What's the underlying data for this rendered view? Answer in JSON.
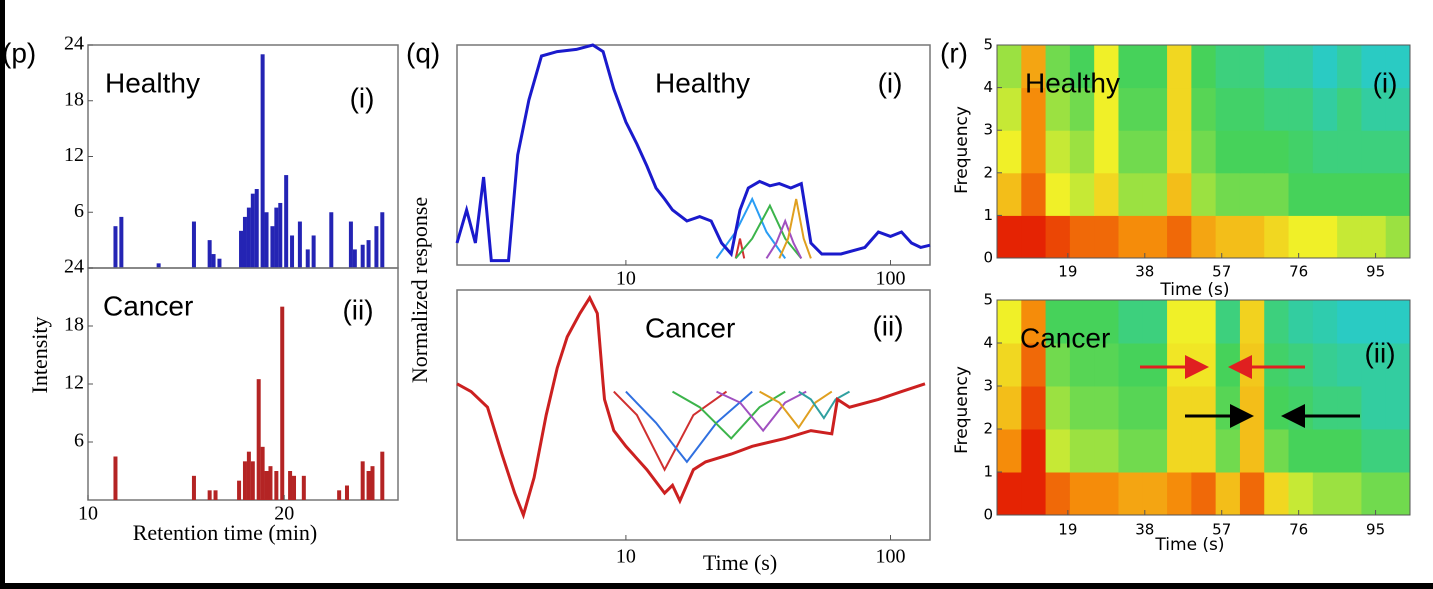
{
  "chart_data": [
    {
      "type": "bar",
      "panel": "(p)",
      "title": "Healthy",
      "subpanel": "(i)",
      "color": "#2424b4",
      "x": [
        11.4,
        11.7,
        13.6,
        15.4,
        16.2,
        16.4,
        16.7,
        17.8,
        18,
        18.2,
        18.4,
        18.6,
        18.9,
        19.1,
        19.4,
        19.6,
        19.8,
        20.1,
        20.4,
        20.8,
        21.2,
        21.5,
        22.4,
        23.4,
        23.6,
        24,
        24.3,
        24.7,
        25
      ],
      "values": [
        4.5,
        5.5,
        0.5,
        5,
        3,
        1.5,
        1,
        4,
        5.5,
        6.5,
        8,
        8.5,
        23,
        6,
        4.5,
        6.5,
        7,
        10,
        3.5,
        5,
        2,
        3.5,
        6,
        5,
        2,
        2.5,
        3,
        4.5,
        6
      ],
      "xlim": [
        10,
        25.8
      ],
      "ylim": [
        0,
        24
      ],
      "yticks": [
        6,
        12,
        18,
        24
      ]
    },
    {
      "type": "bar",
      "title": "Cancer",
      "subpanel": "(ii)",
      "color": "#b42424",
      "xlabel": "Retention time (min)",
      "ylabel": "Intensity",
      "x": [
        11.4,
        15.4,
        16.2,
        16.5,
        17.7,
        18,
        18.2,
        18.4,
        18.7,
        18.9,
        19.1,
        19.3,
        19.6,
        19.9,
        20.3,
        20.5,
        21,
        22.8,
        23.2,
        24,
        24.3,
        24.5,
        25
      ],
      "values": [
        4.5,
        2.5,
        1,
        1,
        2,
        4,
        5,
        4,
        12.5,
        5.5,
        3,
        3.5,
        3,
        20,
        3,
        2.5,
        2.5,
        1,
        1.5,
        4,
        3,
        3.5,
        5
      ],
      "xlim": [
        10,
        25.8
      ],
      "ylim": [
        0,
        24
      ],
      "xticks": [
        10,
        20
      ],
      "yticks": [
        6,
        12,
        18,
        24
      ]
    },
    {
      "type": "line",
      "panel": "(q)",
      "title": "Healthy",
      "subpanel": "(i)",
      "ylabel": "Normalized response",
      "xscale": "log",
      "xlim": [
        2.3,
        141
      ],
      "ylim": [
        0,
        1
      ],
      "xticks": [
        10,
        100
      ],
      "series": [
        {
          "color": "#d03030",
          "x": [
            26,
            27,
            28
          ],
          "values": [
            0.03,
            0.12,
            0.03
          ]
        },
        {
          "color": "#2a9df4",
          "x": [
            22,
            26,
            30,
            34,
            40
          ],
          "values": [
            0.03,
            0.15,
            0.3,
            0.15,
            0.03
          ]
        },
        {
          "color": "#3cb44b",
          "x": [
            26,
            30,
            35,
            40,
            46
          ],
          "values": [
            0.03,
            0.12,
            0.27,
            0.12,
            0.03
          ]
        },
        {
          "color": "#a050c0",
          "x": [
            34,
            37,
            40,
            43,
            46
          ],
          "values": [
            0.03,
            0.1,
            0.2,
            0.1,
            0.03
          ]
        },
        {
          "color": "#e0a020",
          "x": [
            38,
            41,
            44,
            47,
            50
          ],
          "values": [
            0.03,
            0.12,
            0.3,
            0.12,
            0.03
          ]
        },
        {
          "color": "#1a1acc",
          "x": [
            2.3,
            2.5,
            2.7,
            2.9,
            3.1,
            3.3,
            3.6,
            3.9,
            4.3,
            4.8,
            5.5,
            6.5,
            7.5,
            8.2,
            9,
            10,
            11,
            12,
            13,
            14,
            15,
            17,
            19,
            21,
            23,
            25,
            27,
            29,
            32,
            35,
            38,
            42,
            46,
            50,
            55,
            65,
            80,
            90,
            100,
            110,
            120,
            130,
            141
          ],
          "values": [
            0.1,
            0.25,
            0.1,
            0.4,
            0.02,
            0.02,
            0.02,
            0.5,
            0.75,
            0.95,
            0.97,
            0.98,
            1.0,
            0.97,
            0.8,
            0.65,
            0.55,
            0.45,
            0.35,
            0.3,
            0.25,
            0.2,
            0.22,
            0.2,
            0.1,
            0.05,
            0.25,
            0.35,
            0.38,
            0.36,
            0.37,
            0.35,
            0.37,
            0.1,
            0.05,
            0.05,
            0.08,
            0.15,
            0.13,
            0.15,
            0.1,
            0.08,
            0.09
          ]
        }
      ]
    },
    {
      "type": "line",
      "title": "Cancer",
      "subpanel": "(ii)",
      "xlabel": "Time (s)",
      "xscale": "log",
      "xlim": [
        2.3,
        141
      ],
      "ylim": [
        -1,
        0.6
      ],
      "xticks": [
        10,
        100
      ],
      "series": [
        {
          "color": "#d03030",
          "x": [
            9,
            11,
            14,
            18,
            24
          ],
          "values": [
            -0.05,
            -0.2,
            -0.55,
            -0.2,
            -0.05
          ]
        },
        {
          "color": "#3070e0",
          "x": [
            10,
            13,
            17,
            22,
            30
          ],
          "values": [
            -0.05,
            -0.25,
            -0.5,
            -0.25,
            -0.05
          ]
        },
        {
          "color": "#3cb44b",
          "x": [
            15,
            19,
            25,
            32,
            40
          ],
          "values": [
            -0.05,
            -0.15,
            -0.35,
            -0.15,
            -0.05
          ]
        },
        {
          "color": "#a050c0",
          "x": [
            22,
            27,
            33,
            40,
            48
          ],
          "values": [
            -0.05,
            -0.12,
            -0.3,
            -0.12,
            -0.05
          ]
        },
        {
          "color": "#e0a020",
          "x": [
            32,
            38,
            45,
            52,
            60
          ],
          "values": [
            -0.05,
            -0.12,
            -0.28,
            -0.12,
            -0.05
          ]
        },
        {
          "color": "#30a0a0",
          "x": [
            45,
            50,
            56,
            62,
            70
          ],
          "values": [
            -0.05,
            -0.1,
            -0.22,
            -0.1,
            -0.05
          ]
        },
        {
          "color": "#cc2020",
          "x": [
            2.3,
            2.6,
            3,
            3.4,
            3.8,
            4.1,
            4.5,
            5,
            5.5,
            6,
            6.7,
            7.3,
            7.8,
            8.2,
            8.3,
            9,
            10,
            12,
            14,
            15,
            16,
            18,
            20,
            25,
            30,
            40,
            50,
            60,
            63,
            70,
            90,
            110,
            135
          ],
          "values": [
            0,
            -0.05,
            -0.15,
            -0.45,
            -0.7,
            -0.84,
            -0.6,
            -0.2,
            0.1,
            0.3,
            0.45,
            0.55,
            0.45,
            0,
            -0.1,
            -0.3,
            -0.4,
            -0.55,
            -0.7,
            -0.65,
            -0.75,
            -0.55,
            -0.5,
            -0.45,
            -0.4,
            -0.35,
            -0.3,
            -0.32,
            -0.1,
            -0.15,
            -0.1,
            -0.05,
            0
          ]
        }
      ]
    },
    {
      "type": "heatmap",
      "panel": "(r)",
      "title": "Healthy",
      "subpanel": "(i)",
      "xlabel": "Time (s)",
      "ylabel": "Frequency",
      "colormap": [
        "#1e50e6",
        "#20c8e6",
        "#46d25a",
        "#f0f028",
        "#f58c0a",
        "#e00000"
      ],
      "xlim": [
        1.5,
        103.5
      ],
      "ylim": [
        0,
        5
      ],
      "xticks": [
        19,
        38,
        57,
        76,
        95
      ],
      "yticks": [
        0,
        1,
        2,
        3,
        4,
        5
      ],
      "x": [
        4.5,
        10.5,
        16.5,
        22.5,
        28.5,
        34.5,
        40.5,
        46.5,
        52.5,
        58.5,
        64.5,
        70.5,
        76.5,
        82.5,
        88.5,
        94.5,
        100.5
      ],
      "y": [
        0.5,
        1.5,
        2.5,
        3.5,
        4.5
      ],
      "values": [
        [
          0.95,
          0.95,
          0.9,
          0.85,
          0.85,
          0.8,
          0.8,
          0.85,
          0.75,
          0.7,
          0.7,
          0.65,
          0.6,
          0.6,
          0.55,
          0.55,
          0.5
        ],
        [
          0.7,
          0.85,
          0.6,
          0.55,
          0.65,
          0.5,
          0.5,
          0.7,
          0.5,
          0.45,
          0.45,
          0.45,
          0.4,
          0.4,
          0.4,
          0.4,
          0.4
        ],
        [
          0.6,
          0.8,
          0.55,
          0.5,
          0.6,
          0.45,
          0.45,
          0.65,
          0.45,
          0.4,
          0.4,
          0.4,
          0.38,
          0.35,
          0.35,
          0.35,
          0.35
        ],
        [
          0.55,
          0.8,
          0.5,
          0.45,
          0.6,
          0.42,
          0.42,
          0.65,
          0.42,
          0.38,
          0.38,
          0.35,
          0.35,
          0.3,
          0.35,
          0.3,
          0.3
        ],
        [
          0.5,
          0.75,
          0.45,
          0.4,
          0.6,
          0.4,
          0.4,
          0.65,
          0.4,
          0.35,
          0.35,
          0.3,
          0.3,
          0.25,
          0.3,
          0.25,
          0.25
        ]
      ]
    },
    {
      "type": "heatmap",
      "title": "Cancer",
      "subpanel": "(ii)",
      "xlabel": "Time (s)",
      "ylabel": "Frequency",
      "colormap": [
        "#1e50e6",
        "#20c8e6",
        "#46d25a",
        "#f0f028",
        "#f58c0a",
        "#e00000"
      ],
      "xlim": [
        1.5,
        103.5
      ],
      "ylim": [
        0,
        5
      ],
      "xticks": [
        19,
        38,
        57,
        76,
        95
      ],
      "yticks": [
        0,
        1,
        2,
        3,
        4,
        5
      ],
      "x": [
        4.5,
        10.5,
        16.5,
        22.5,
        28.5,
        34.5,
        40.5,
        46.5,
        52.5,
        58.5,
        64.5,
        70.5,
        76.5,
        82.5,
        88.5,
        94.5,
        100.5
      ],
      "y": [
        0.5,
        1.5,
        2.5,
        3.5,
        4.5
      ],
      "values": [
        [
          0.95,
          0.95,
          0.85,
          0.8,
          0.8,
          0.75,
          0.75,
          0.8,
          0.85,
          0.7,
          0.85,
          0.65,
          0.55,
          0.5,
          0.5,
          0.45,
          0.45
        ],
        [
          0.8,
          0.95,
          0.55,
          0.5,
          0.5,
          0.45,
          0.45,
          0.65,
          0.65,
          0.45,
          0.7,
          0.45,
          0.4,
          0.4,
          0.4,
          0.35,
          0.35
        ],
        [
          0.7,
          0.9,
          0.5,
          0.45,
          0.45,
          0.42,
          0.42,
          0.65,
          0.65,
          0.42,
          0.7,
          0.4,
          0.38,
          0.35,
          0.35,
          0.3,
          0.3
        ],
        [
          0.65,
          0.85,
          0.45,
          0.42,
          0.42,
          0.4,
          0.4,
          0.62,
          0.62,
          0.4,
          0.68,
          0.38,
          0.35,
          0.32,
          0.3,
          0.3,
          0.3
        ],
        [
          0.6,
          0.8,
          0.4,
          0.4,
          0.4,
          0.35,
          0.35,
          0.6,
          0.6,
          0.35,
          0.66,
          0.35,
          0.3,
          0.28,
          0.25,
          0.25,
          0.25
        ]
      ]
    }
  ]
}
